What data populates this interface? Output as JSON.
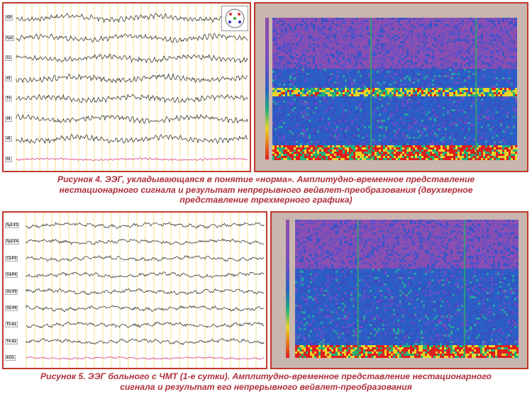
{
  "figure4": {
    "eeg_channels": [
      "#2f",
      "Fp2",
      "Cz",
      "#3",
      "T4",
      "#4",
      "#5",
      "01"
    ],
    "caption_line1": "Рисунок 4. ЭЭГ, укладывающаяся в понятие «норма». Амплитудно-временное представление",
    "caption_line2": "нестационарного сигнала и результат непрерывного вейвлет-преобразования (двухмерное",
    "caption_line3": "представление трехмерного графика)"
  },
  "figure5": {
    "eeg_channels": [
      "Fp1-F3",
      "Fp2-F4",
      "C3-P3",
      "C4-P4",
      "O1-P3",
      "O2-P4",
      "T3-A1",
      "T4-A2",
      "ECG"
    ],
    "caption_line1": "Рисунок 5. ЭЭГ больного с ЧМТ (1-е сутки). Амплитудно-временное представление нестационарного",
    "caption_line2": "сигнала и результат его непрерывного вейвлет-преобразования"
  },
  "colors": {
    "frame": "#c0392b",
    "caption": "#b0303b",
    "wavelet_low": "#8e4fa8",
    "wavelet_mid": "#2a5fc7",
    "wavelet_high": "#e01e1e"
  }
}
